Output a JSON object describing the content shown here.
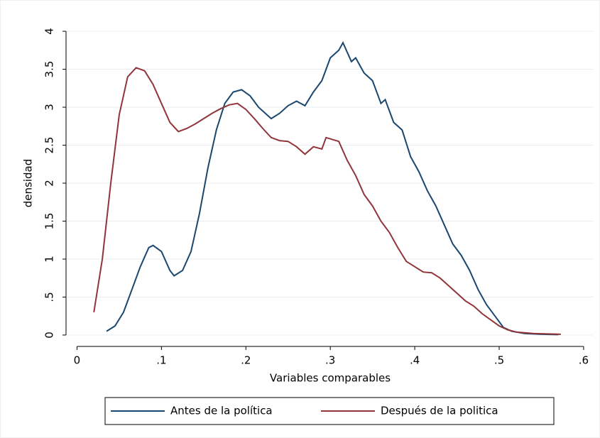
{
  "chart_data": {
    "type": "line",
    "xlabel": "Variables comparables",
    "ylabel": "densidad",
    "xlim": [
      -0.013,
      0.611
    ],
    "ylim": [
      -0.15,
      4.15
    ],
    "xticks": [
      0,
      {
        "value": 0.1,
        "label": ".1"
      },
      {
        "value": 0.2,
        "label": ".2"
      },
      {
        "value": 0.3,
        "label": ".3"
      },
      {
        "value": 0.4,
        "label": ".4"
      },
      {
        "value": 0.5,
        "label": ".5"
      },
      {
        "value": 0.6,
        "label": ".6"
      }
    ],
    "yticks": [
      0,
      {
        "value": 0.5,
        "label": ".5"
      },
      1,
      1.5,
      2,
      2.5,
      3,
      3.5,
      4
    ],
    "grid": true,
    "legend": "bottom",
    "series": [
      {
        "name": "Antes de la política",
        "color": "#1a476f",
        "x": [
          0.035,
          0.045,
          0.055,
          0.065,
          0.075,
          0.085,
          0.09,
          0.1,
          0.11,
          0.115,
          0.125,
          0.135,
          0.145,
          0.155,
          0.165,
          0.175,
          0.185,
          0.195,
          0.205,
          0.215,
          0.225,
          0.23,
          0.24,
          0.25,
          0.26,
          0.27,
          0.28,
          0.29,
          0.3,
          0.31,
          0.315,
          0.325,
          0.33,
          0.34,
          0.35,
          0.36,
          0.365,
          0.375,
          0.385,
          0.395,
          0.405,
          0.415,
          0.425,
          0.435,
          0.445,
          0.455,
          0.465,
          0.475,
          0.485,
          0.495,
          0.505,
          0.515,
          0.53,
          0.55,
          0.57
        ],
        "values": [
          0.05,
          0.12,
          0.3,
          0.6,
          0.9,
          1.15,
          1.18,
          1.1,
          0.85,
          0.78,
          0.85,
          1.1,
          1.6,
          2.2,
          2.7,
          3.05,
          3.2,
          3.23,
          3.15,
          3.0,
          2.9,
          2.85,
          2.92,
          3.02,
          3.08,
          3.02,
          3.2,
          3.35,
          3.65,
          3.75,
          3.85,
          3.6,
          3.65,
          3.45,
          3.35,
          3.05,
          3.1,
          2.8,
          2.7,
          2.35,
          2.15,
          1.9,
          1.7,
          1.45,
          1.2,
          1.05,
          0.85,
          0.6,
          0.4,
          0.25,
          0.1,
          0.05,
          0.02,
          0.01,
          0.005
        ]
      },
      {
        "name": "Después de la politica",
        "color": "#90353b",
        "x": [
          0.02,
          0.03,
          0.04,
          0.05,
          0.06,
          0.07,
          0.08,
          0.09,
          0.1,
          0.11,
          0.12,
          0.13,
          0.14,
          0.15,
          0.16,
          0.17,
          0.18,
          0.19,
          0.2,
          0.21,
          0.22,
          0.23,
          0.24,
          0.25,
          0.26,
          0.27,
          0.28,
          0.29,
          0.295,
          0.31,
          0.32,
          0.33,
          0.34,
          0.35,
          0.36,
          0.37,
          0.38,
          0.39,
          0.4,
          0.41,
          0.42,
          0.43,
          0.44,
          0.45,
          0.46,
          0.47,
          0.48,
          0.49,
          0.5,
          0.51,
          0.52,
          0.54,
          0.573
        ],
        "values": [
          0.3,
          1.0,
          2.0,
          2.9,
          3.4,
          3.52,
          3.48,
          3.3,
          3.05,
          2.8,
          2.68,
          2.72,
          2.78,
          2.85,
          2.92,
          2.98,
          3.03,
          3.05,
          2.97,
          2.85,
          2.72,
          2.6,
          2.56,
          2.55,
          2.48,
          2.38,
          2.48,
          2.45,
          2.6,
          2.55,
          2.3,
          2.1,
          1.85,
          1.7,
          1.5,
          1.35,
          1.15,
          0.97,
          0.9,
          0.83,
          0.82,
          0.75,
          0.65,
          0.55,
          0.45,
          0.38,
          0.28,
          0.2,
          0.12,
          0.07,
          0.04,
          0.02,
          0.01
        ]
      }
    ]
  }
}
